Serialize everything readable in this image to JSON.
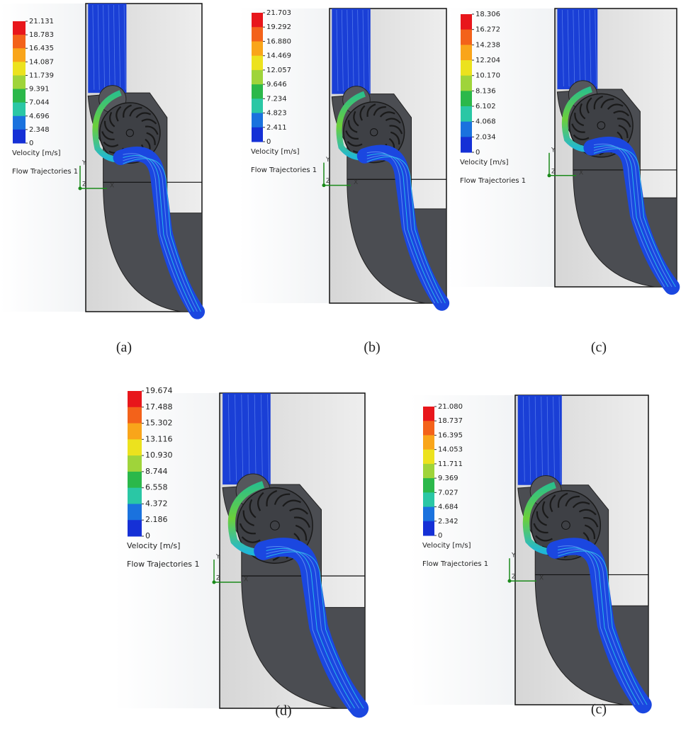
{
  "panels": [
    {
      "legend_values": [
        "21.131",
        "18.783",
        "16.435",
        "14.087",
        "11.739",
        "9.391",
        "7.044",
        "4.696",
        "2.348",
        "0"
      ],
      "legend_title": "Velocity [m/s]",
      "feature_name": "Flow Trajectories 1",
      "axes": {
        "y": "Y",
        "z": "Z",
        "x": "X"
      },
      "caption": "(a)"
    },
    {
      "legend_values": [
        "21.703",
        "19.292",
        "16.880",
        "14.469",
        "12.057",
        "9.646",
        "7.234",
        "4.823",
        "2.411",
        "0"
      ],
      "legend_title": "Velocity [m/s]",
      "feature_name": "Flow Trajectories 1",
      "axes": {
        "y": "Y",
        "z": "Z",
        "x": "X"
      },
      "caption": "(b)"
    },
    {
      "legend_values": [
        "18.306",
        "16.272",
        "14.238",
        "12.204",
        "10.170",
        "8.136",
        "6.102",
        "4.068",
        "2.034",
        "0"
      ],
      "legend_title": "Velocity [m/s]",
      "feature_name": "Flow Trajectories 1",
      "axes": {
        "y": "Y",
        "z": "Z",
        "x": "X"
      },
      "caption": "(c)"
    },
    {
      "legend_values": [
        "19.674",
        "17.488",
        "15.302",
        "13.116",
        "10.930",
        "8.744",
        "6.558",
        "4.372",
        "2.186",
        "0"
      ],
      "legend_title": "Velocity [m/s]",
      "feature_name": "Flow Trajectories 1",
      "axes": {
        "y": "Y",
        "z": "Z",
        "x": "X"
      },
      "caption": "(d)"
    },
    {
      "legend_values": [
        "21.080",
        "18.737",
        "16.395",
        "14.053",
        "11.711",
        "9.369",
        "7.027",
        "4.684",
        "2.342",
        "0"
      ],
      "legend_title": "Velocity [m/s]",
      "feature_name": "Flow Trajectories 1",
      "axes": {
        "y": "Y",
        "z": "Z",
        "x": "X"
      },
      "caption": "(c)"
    }
  ]
}
